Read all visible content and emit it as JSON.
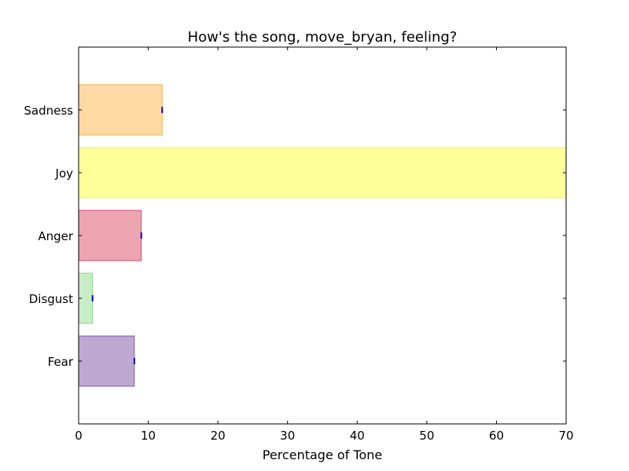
{
  "chart_data": {
    "type": "bar",
    "orientation": "horizontal",
    "title": "How's the song, move_bryan, feeling?",
    "xlabel": "Percentage of Tone",
    "ylabel": "",
    "xlim": [
      0,
      70
    ],
    "xticks": [
      0,
      10,
      20,
      30,
      40,
      50,
      60,
      70
    ],
    "grid": false,
    "categories": [
      "Fear",
      "Disgust",
      "Anger",
      "Joy",
      "Sadness"
    ],
    "values": [
      8,
      2,
      9,
      70,
      12
    ],
    "colors": [
      "#7e52a3",
      "#8fdc8f",
      "#dc4a63",
      "#ffff33",
      "#ffb347"
    ],
    "edge_colors": [
      "#6a3d9a",
      "#7acb7a",
      "#c8324d",
      "#e6e64a",
      "#f0a030"
    ],
    "error_marker_color": "#0000cc"
  }
}
